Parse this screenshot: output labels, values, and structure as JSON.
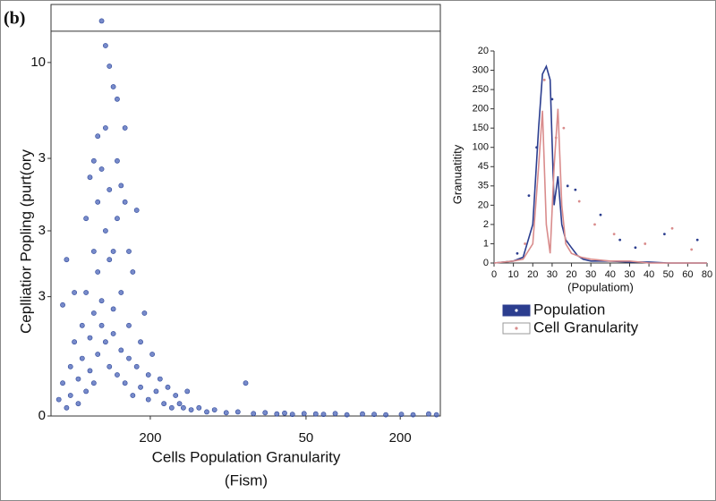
{
  "panel_label": "(b)",
  "chart_data": [
    {
      "type": "scatter",
      "ylabel": "Ceplliatior Popling (purt(ory",
      "xlabel": "Cells Population Granularity",
      "xlabel_note": "(Fism)",
      "color": "#4a63b8",
      "xlim": [
        0,
        100
      ],
      "ylim": [
        0,
        100
      ],
      "xticks": [
        {
          "value": 25.5,
          "label": "200"
        },
        {
          "value": 65.5,
          "label": "50"
        },
        {
          "value": 89.7,
          "label": "200"
        }
      ],
      "yticks": [
        0,
        {
          "value": 29,
          "label": "3"
        },
        {
          "value": 45,
          "label": "3"
        },
        {
          "value": 62.6,
          "label": "3"
        },
        {
          "value": 85.9,
          "label": "10"
        }
      ],
      "hline": 93.5,
      "x": [
        2,
        3,
        4,
        5,
        5,
        6,
        7,
        7,
        8,
        8,
        9,
        9,
        10,
        10,
        11,
        11,
        11,
        12,
        12,
        12,
        13,
        13,
        13,
        13,
        14,
        14,
        14,
        14,
        15,
        15,
        15,
        15,
        16,
        16,
        16,
        17,
        17,
        17,
        18,
        18,
        19,
        19,
        20,
        20,
        21,
        21,
        22,
        22,
        23,
        23,
        24,
        25,
        25,
        26,
        27,
        28,
        29,
        30,
        31,
        32,
        33,
        34,
        35,
        36,
        38,
        40,
        42,
        45,
        48,
        50,
        52,
        55,
        58,
        60,
        62,
        65,
        68,
        70,
        73,
        76,
        80,
        83,
        86,
        90,
        93,
        97,
        99,
        6,
        4,
        3,
        10,
        12,
        11,
        16,
        18,
        19,
        20,
        9,
        17
      ],
      "y": [
        4,
        8,
        2,
        12,
        5,
        18,
        9,
        3,
        22,
        14,
        6,
        30,
        11,
        19,
        25,
        40,
        8,
        35,
        15,
        52,
        60,
        22,
        28,
        96,
        90,
        45,
        18,
        70,
        85,
        38,
        12,
        55,
        80,
        26,
        20,
        77,
        48,
        10,
        30,
        16,
        52,
        8,
        22,
        14,
        5,
        35,
        12,
        50,
        18,
        7,
        25,
        10,
        4,
        15,
        6,
        9,
        3,
        7,
        2,
        5,
        3,
        2,
        6,
        1.5,
        2,
        1,
        1.5,
        0.8,
        1,
        8,
        0.6,
        0.8,
        0.5,
        0.7,
        0.4,
        0.6,
        0.5,
        0.4,
        0.6,
        0.3,
        0.5,
        0.4,
        0.3,
        0.4,
        0.3,
        0.5,
        0.3,
        30,
        38,
        27,
        58,
        68,
        62,
        40,
        56,
        70,
        40,
        48,
        62
      ]
    },
    {
      "type": "line",
      "ylabel": "Granuatitity",
      "xlabel": "(Populatiom)",
      "xlim": [
        0,
        11
      ],
      "ylim": [
        0,
        11
      ],
      "xticks": [
        0,
        {
          "value": 1,
          "label": "10"
        },
        {
          "value": 2,
          "label": "20"
        },
        {
          "value": 3,
          "label": "30"
        },
        {
          "value": 4,
          "label": "20"
        },
        {
          "value": 5,
          "label": "30"
        },
        {
          "value": 6,
          "label": "40"
        },
        {
          "value": 7,
          "label": "30"
        },
        {
          "value": 8,
          "label": "40"
        },
        {
          "value": 9,
          "label": "50"
        },
        {
          "value": 10,
          "label": "60"
        },
        {
          "value": 11,
          "label": "80"
        }
      ],
      "yticks": [
        0,
        1,
        2,
        {
          "value": 3,
          "label": "20"
        },
        {
          "value": 4,
          "label": "35"
        },
        {
          "value": 5,
          "label": "45"
        },
        {
          "value": 6,
          "label": "100"
        },
        {
          "value": 7,
          "label": "150"
        },
        {
          "value": 8,
          "label": "200"
        },
        {
          "value": 9,
          "label": "250"
        },
        {
          "value": 10,
          "label": "300"
        },
        {
          "value": 11,
          "label": "20"
        }
      ],
      "series": [
        {
          "name": "Population",
          "color": "#2c3e8f",
          "x": [
            0,
            1,
            1.5,
            2,
            2.3,
            2.5,
            2.7,
            2.9,
            3.1,
            3.3,
            3.5,
            3.7,
            4,
            4.3,
            4.6,
            5,
            6,
            7,
            8,
            9,
            10,
            11
          ],
          "values": [
            0,
            0.1,
            0.3,
            2,
            7,
            9.8,
            10.2,
            9.5,
            3,
            4.5,
            2,
            1.2,
            0.8,
            0.4,
            0.2,
            0.1,
            0.1,
            0.05,
            0.05,
            0,
            0,
            0
          ],
          "points_x": [
            1.2,
            1.8,
            2.2,
            3.0,
            3.8,
            4.2,
            5.5,
            6.5,
            7.3,
            8.8,
            10.5
          ],
          "points_y": [
            0.5,
            3.5,
            6,
            8.5,
            4,
            3.8,
            2.5,
            1.2,
            0.8,
            1.5,
            1.2
          ]
        },
        {
          "name": "Cell Granularity",
          "color": "#d98c8c",
          "x": [
            0,
            1,
            1.5,
            2,
            2.3,
            2.5,
            2.7,
            2.9,
            3.1,
            3.3,
            3.5,
            3.7,
            4,
            4.5,
            5,
            6,
            7,
            8,
            9,
            10,
            11
          ],
          "values": [
            0,
            0.1,
            0.2,
            1,
            5,
            7.9,
            2,
            0.5,
            5,
            8,
            3,
            1,
            0.5,
            0.3,
            0.2,
            0.1,
            0.1,
            0,
            0,
            0,
            0
          ],
          "points_x": [
            1.6,
            2.6,
            3.2,
            3.6,
            4.4,
            5.2,
            6.2,
            7.8,
            9.2,
            10.2
          ],
          "points_y": [
            1,
            9.5,
            6.5,
            7,
            3.2,
            2,
            1.5,
            1,
            1.8,
            0.7
          ]
        }
      ]
    }
  ]
}
